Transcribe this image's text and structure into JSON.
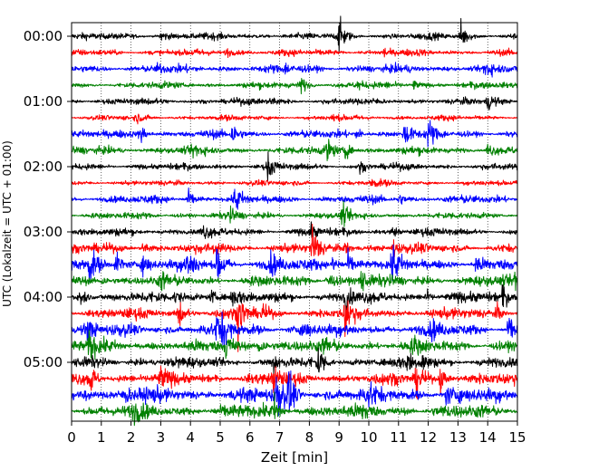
{
  "chart_data": {
    "type": "line",
    "title": "",
    "xlabel": "Zeit  [min]",
    "ylabel": "UTC (Lokalzeit = UTC + 01:00)",
    "xlim": [
      0,
      15
    ],
    "x_ticks": [
      0,
      1,
      2,
      3,
      4,
      5,
      6,
      7,
      8,
      9,
      10,
      11,
      12,
      13,
      14,
      15
    ],
    "x_tick_labels": [
      "0",
      "1",
      "2",
      "3",
      "4",
      "5",
      "6",
      "7",
      "8",
      "9",
      "10",
      "11",
      "12",
      "13",
      "14",
      "15"
    ],
    "y_tick_labels": [
      "00:00",
      "01:00",
      "02:00",
      "03:00",
      "04:00",
      "05:00"
    ],
    "trace_interval_minutes": 15,
    "grid": "vertical dotted lines at each minute",
    "colors": [
      "#000000",
      "#ff0000",
      "#0000ff",
      "#008000"
    ],
    "series": [
      {
        "start": "00:00",
        "color": "#000000",
        "amplitude": 0.25,
        "events": [
          [
            3.0,
            0.5
          ],
          [
            9.0,
            1.5
          ],
          [
            13.1,
            1.2
          ]
        ]
      },
      {
        "start": "00:15",
        "color": "#ff0000",
        "amplitude": 0.25,
        "events": [
          [
            5.2,
            0.4
          ],
          [
            10.5,
            0.4
          ]
        ]
      },
      {
        "start": "00:30",
        "color": "#0000ff",
        "amplitude": 0.3,
        "events": [
          [
            2.9,
            0.4
          ],
          [
            7.2,
            0.4
          ],
          [
            13.9,
            0.8
          ]
        ]
      },
      {
        "start": "00:45",
        "color": "#008000",
        "amplitude": 0.25,
        "events": [
          [
            7.7,
            0.7
          ],
          [
            11.5,
            0.4
          ],
          [
            9.6,
            0.4
          ]
        ]
      },
      {
        "start": "01:00",
        "color": "#000000",
        "amplitude": 0.25,
        "events": [
          [
            6.7,
            0.4
          ],
          [
            14.0,
            0.8
          ]
        ]
      },
      {
        "start": "01:15",
        "color": "#ff0000",
        "amplitude": 0.2,
        "events": [
          [
            2.2,
            0.3
          ],
          [
            8.8,
            0.3
          ]
        ]
      },
      {
        "start": "01:30",
        "color": "#0000ff",
        "amplitude": 0.3,
        "events": [
          [
            2.3,
            1.0
          ],
          [
            5.4,
            1.0
          ],
          [
            11.2,
            1.3
          ],
          [
            12.0,
            1.2
          ],
          [
            9.6,
            0.5
          ]
        ]
      },
      {
        "start": "01:45",
        "color": "#008000",
        "amplitude": 0.3,
        "events": [
          [
            4.1,
            0.6
          ],
          [
            8.6,
            1.0
          ],
          [
            9.2,
            0.8
          ],
          [
            14.0,
            0.6
          ]
        ]
      },
      {
        "start": "02:00",
        "color": "#000000",
        "amplitude": 0.25,
        "events": [
          [
            6.6,
            1.1
          ],
          [
            9.7,
            0.4
          ]
        ]
      },
      {
        "start": "02:15",
        "color": "#ff0000",
        "amplitude": 0.2,
        "events": [
          [
            10.1,
            0.4
          ]
        ]
      },
      {
        "start": "02:30",
        "color": "#0000ff",
        "amplitude": 0.3,
        "events": [
          [
            3.9,
            0.8
          ],
          [
            5.5,
            1.2
          ],
          [
            11.0,
            0.5
          ]
        ]
      },
      {
        "start": "02:45",
        "color": "#008000",
        "amplitude": 0.25,
        "events": [
          [
            5.3,
            0.6
          ],
          [
            9.1,
            0.9
          ]
        ]
      },
      {
        "start": "03:00",
        "color": "#000000",
        "amplitude": 0.3,
        "events": [
          [
            4.4,
            0.5
          ],
          [
            8.0,
            0.6
          ],
          [
            10.8,
            0.4
          ]
        ]
      },
      {
        "start": "03:15",
        "color": "#ff0000",
        "amplitude": 0.35,
        "events": [
          [
            2.4,
            0.6
          ],
          [
            4.8,
            0.6
          ],
          [
            8.1,
            2.0
          ],
          [
            9.2,
            0.6
          ],
          [
            10.8,
            0.8
          ]
        ]
      },
      {
        "start": "03:30",
        "color": "#0000ff",
        "amplitude": 0.45,
        "events": [
          [
            0.6,
            1.4
          ],
          [
            1.5,
            1.3
          ],
          [
            2.4,
            1.0
          ],
          [
            3.8,
            0.8
          ],
          [
            4.0,
            0.8
          ],
          [
            4.9,
            1.8
          ],
          [
            6.7,
            0.8
          ],
          [
            8.8,
            1.0
          ],
          [
            9.3,
            0.9
          ],
          [
            10.8,
            1.5
          ],
          [
            13.6,
            0.8
          ]
        ]
      },
      {
        "start": "03:45",
        "color": "#008000",
        "amplitude": 0.4,
        "events": [
          [
            1.0,
            0.6
          ],
          [
            3.0,
            0.6
          ],
          [
            8.6,
            1.0
          ],
          [
            9.7,
            1.2
          ],
          [
            14.9,
            1.0
          ]
        ]
      },
      {
        "start": "04:00",
        "color": "#000000",
        "amplitude": 0.4,
        "events": [
          [
            0.3,
            1.0
          ],
          [
            3.5,
            0.6
          ],
          [
            4.7,
            0.6
          ],
          [
            5.4,
            0.7
          ],
          [
            9.2,
            1.2
          ],
          [
            11.9,
            0.6
          ],
          [
            14.5,
            0.8
          ]
        ]
      },
      {
        "start": "04:15",
        "color": "#ff0000",
        "amplitude": 0.4,
        "events": [
          [
            3.6,
            1.3
          ],
          [
            5.6,
            2.0
          ],
          [
            6.4,
            0.6
          ],
          [
            9.2,
            2.0
          ],
          [
            14.3,
            0.6
          ]
        ]
      },
      {
        "start": "04:30",
        "color": "#0000ff",
        "amplitude": 0.45,
        "events": [
          [
            0.5,
            1.0
          ],
          [
            4.9,
            1.6
          ],
          [
            5.1,
            0.9
          ],
          [
            7.8,
            0.7
          ],
          [
            12.1,
            0.6
          ],
          [
            14.7,
            1.2
          ]
        ]
      },
      {
        "start": "04:45",
        "color": "#008000",
        "amplitude": 0.45,
        "events": [
          [
            0.6,
            1.5
          ],
          [
            5.2,
            1.3
          ],
          [
            6.3,
            1.2
          ],
          [
            8.5,
            0.6
          ],
          [
            11.5,
            0.6
          ]
        ]
      },
      {
        "start": "05:00",
        "color": "#000000",
        "amplitude": 0.4,
        "events": [
          [
            8.3,
            1.4
          ],
          [
            11.3,
            0.9
          ],
          [
            11.8,
            0.8
          ],
          [
            6.8,
            0.6
          ]
        ]
      },
      {
        "start": "05:15",
        "color": "#ff0000",
        "amplitude": 0.45,
        "events": [
          [
            0.6,
            1.5
          ],
          [
            3.0,
            0.7
          ],
          [
            6.8,
            1.2
          ],
          [
            11.6,
            1.4
          ],
          [
            12.4,
            1.1
          ]
        ]
      },
      {
        "start": "05:30",
        "color": "#0000ff",
        "amplitude": 0.55,
        "events": [
          [
            0.4,
            0.8
          ],
          [
            1.8,
            0.7
          ],
          [
            6.9,
            2.2
          ],
          [
            7.3,
            1.8
          ],
          [
            10.0,
            0.8
          ],
          [
            12.6,
            0.7
          ]
        ]
      },
      {
        "start": "05:45",
        "color": "#008000",
        "amplitude": 0.5,
        "events": [
          [
            2.1,
            0.6
          ],
          [
            6.8,
            1.2
          ],
          [
            9.8,
            0.6
          ]
        ]
      }
    ]
  }
}
